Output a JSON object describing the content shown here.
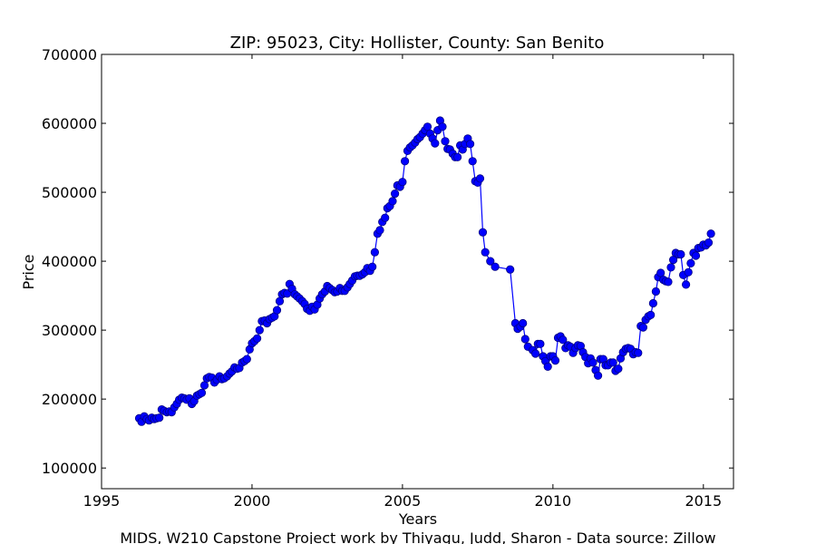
{
  "chart_data": {
    "type": "line",
    "title": "ZIP: 95023, City: Hollister, County: San Benito",
    "xlabel": "Years",
    "ylabel": "Price",
    "footer": "MIDS, W210 Capstone Project work by Thiyagu, Judd, Sharon  -  Data source: Zillow",
    "xlim": [
      1995,
      2016
    ],
    "ylim": [
      70000,
      700000
    ],
    "xticks": [
      1995,
      2000,
      2005,
      2010,
      2015
    ],
    "yticks": [
      100000,
      200000,
      300000,
      400000,
      500000,
      600000,
      700000
    ],
    "grid": false,
    "legend": "none",
    "colors": {
      "series": "#0000ff",
      "marker_edge": "#000080"
    },
    "series": [
      {
        "x": [
          1996.25,
          1996.33,
          1996.42,
          1996.5,
          1996.58,
          1996.67,
          1996.75,
          1996.83,
          1996.92,
          1997.0,
          1997.08,
          1997.17,
          1997.25,
          1997.33,
          1997.42,
          1997.5,
          1997.58,
          1997.67,
          1997.75,
          1997.83,
          1997.92,
          1998.0,
          1998.08,
          1998.17,
          1998.25,
          1998.33,
          1998.42,
          1998.5,
          1998.58,
          1998.67,
          1998.75,
          1998.83,
          1998.92,
          1999.0,
          1999.08,
          1999.17,
          1999.25,
          1999.33,
          1999.42,
          1999.5,
          1999.58,
          1999.67,
          1999.75,
          1999.83,
          1999.92,
          2000.0,
          2000.08,
          2000.17,
          2000.25,
          2000.33,
          2000.42,
          2000.5,
          2000.58,
          2000.67,
          2000.75,
          2000.83,
          2000.92,
          2001.0,
          2001.08,
          2001.17,
          2001.25,
          2001.33,
          2001.42,
          2001.5,
          2001.58,
          2001.67,
          2001.75,
          2001.83,
          2001.92,
          2002.0,
          2002.08,
          2002.17,
          2002.25,
          2002.33,
          2002.42,
          2002.5,
          2002.58,
          2002.67,
          2002.75,
          2002.83,
          2002.92,
          2003.0,
          2003.08,
          2003.17,
          2003.25,
          2003.33,
          2003.42,
          2003.5,
          2003.58,
          2003.67,
          2003.75,
          2003.83,
          2003.92,
          2004.0,
          2004.08,
          2004.17,
          2004.25,
          2004.33,
          2004.42,
          2004.5,
          2004.58,
          2004.67,
          2004.75,
          2004.83,
          2004.92,
          2005.0,
          2005.08,
          2005.17,
          2005.25,
          2005.33,
          2005.42,
          2005.5,
          2005.58,
          2005.67,
          2005.75,
          2005.83,
          2005.92,
          2006.0,
          2006.08,
          2006.17,
          2006.25,
          2006.33,
          2006.42,
          2006.5,
          2006.58,
          2006.67,
          2006.75,
          2006.83,
          2006.92,
          2007.0,
          2007.08,
          2007.17,
          2007.25,
          2007.33,
          2007.42,
          2007.5,
          2007.58,
          2007.67,
          2007.75,
          2007.92,
          2008.08,
          2008.58,
          2008.75,
          2008.83,
          2008.92,
          2009.0,
          2009.08,
          2009.17,
          2009.33,
          2009.42,
          2009.5,
          2009.58,
          2009.67,
          2009.75,
          2009.83,
          2009.92,
          2010.0,
          2010.08,
          2010.17,
          2010.25,
          2010.33,
          2010.42,
          2010.5,
          2010.58,
          2010.67,
          2010.75,
          2010.83,
          2010.92,
          2011.0,
          2011.08,
          2011.17,
          2011.25,
          2011.33,
          2011.42,
          2011.5,
          2011.58,
          2011.67,
          2011.75,
          2011.83,
          2011.92,
          2012.0,
          2012.08,
          2012.17,
          2012.25,
          2012.33,
          2012.42,
          2012.5,
          2012.58,
          2012.67,
          2012.75,
          2012.83,
          2012.92,
          2013.0,
          2013.08,
          2013.17,
          2013.25,
          2013.33,
          2013.42,
          2013.5,
          2013.58,
          2013.67,
          2013.75,
          2013.83,
          2013.92,
          2014.0,
          2014.08,
          2014.17,
          2014.25,
          2014.33,
          2014.42,
          2014.5,
          2014.58,
          2014.67,
          2014.75,
          2014.83,
          2014.92,
          2015.0,
          2015.08,
          2015.17,
          2015.25
        ],
        "y": [
          172000,
          167000,
          175000,
          171000,
          169000,
          173000,
          171000,
          172000,
          173000,
          185000,
          183000,
          181000,
          182000,
          181000,
          188000,
          193000,
          199000,
          202000,
          201000,
          199000,
          201000,
          193000,
          197000,
          205000,
          207000,
          209000,
          220000,
          230000,
          232000,
          231000,
          224000,
          228000,
          233000,
          229000,
          230000,
          233000,
          237000,
          240000,
          246000,
          244000,
          245000,
          253000,
          255000,
          258000,
          272000,
          281000,
          284000,
          288000,
          300000,
          313000,
          314000,
          310000,
          316000,
          318000,
          320000,
          329000,
          342000,
          352000,
          354000,
          353000,
          367000,
          360000,
          352000,
          349000,
          346000,
          342000,
          338000,
          331000,
          328000,
          334000,
          330000,
          337000,
          346000,
          352000,
          356000,
          364000,
          361000,
          358000,
          355000,
          356000,
          361000,
          357000,
          357000,
          362000,
          367000,
          372000,
          378000,
          379000,
          379000,
          381000,
          384000,
          390000,
          386000,
          392000,
          413000,
          440000,
          445000,
          457000,
          463000,
          477000,
          480000,
          487000,
          498000,
          510000,
          508000,
          515000,
          545000,
          560000,
          565000,
          568000,
          572000,
          577000,
          580000,
          585000,
          590000,
          595000,
          585000,
          578000,
          571000,
          590000,
          604000,
          595000,
          574000,
          563000,
          562000,
          556000,
          551000,
          551000,
          568000,
          562000,
          570000,
          578000,
          570000,
          545000,
          516000,
          514000,
          520000,
          442000,
          413000,
          400000,
          392000,
          388000,
          310000,
          302000,
          305000,
          310000,
          287000,
          276000,
          271000,
          266000,
          280000,
          280000,
          262000,
          255000,
          247000,
          262000,
          262000,
          256000,
          289000,
          291000,
          286000,
          274000,
          278000,
          276000,
          267000,
          274000,
          278000,
          277000,
          268000,
          261000,
          252000,
          259000,
          253000,
          242000,
          234000,
          258000,
          258000,
          249000,
          249000,
          253000,
          253000,
          241000,
          244000,
          259000,
          268000,
          273000,
          274000,
          273000,
          265000,
          268000,
          267000,
          306000,
          304000,
          315000,
          320000,
          322000,
          339000,
          356000,
          377000,
          383000,
          373000,
          371000,
          370000,
          391000,
          402000,
          412000,
          410000,
          410000,
          380000,
          366000,
          384000,
          397000,
          412000,
          408000,
          419000,
          420000,
          424000,
          423000,
          427000,
          440000
        ]
      }
    ]
  }
}
